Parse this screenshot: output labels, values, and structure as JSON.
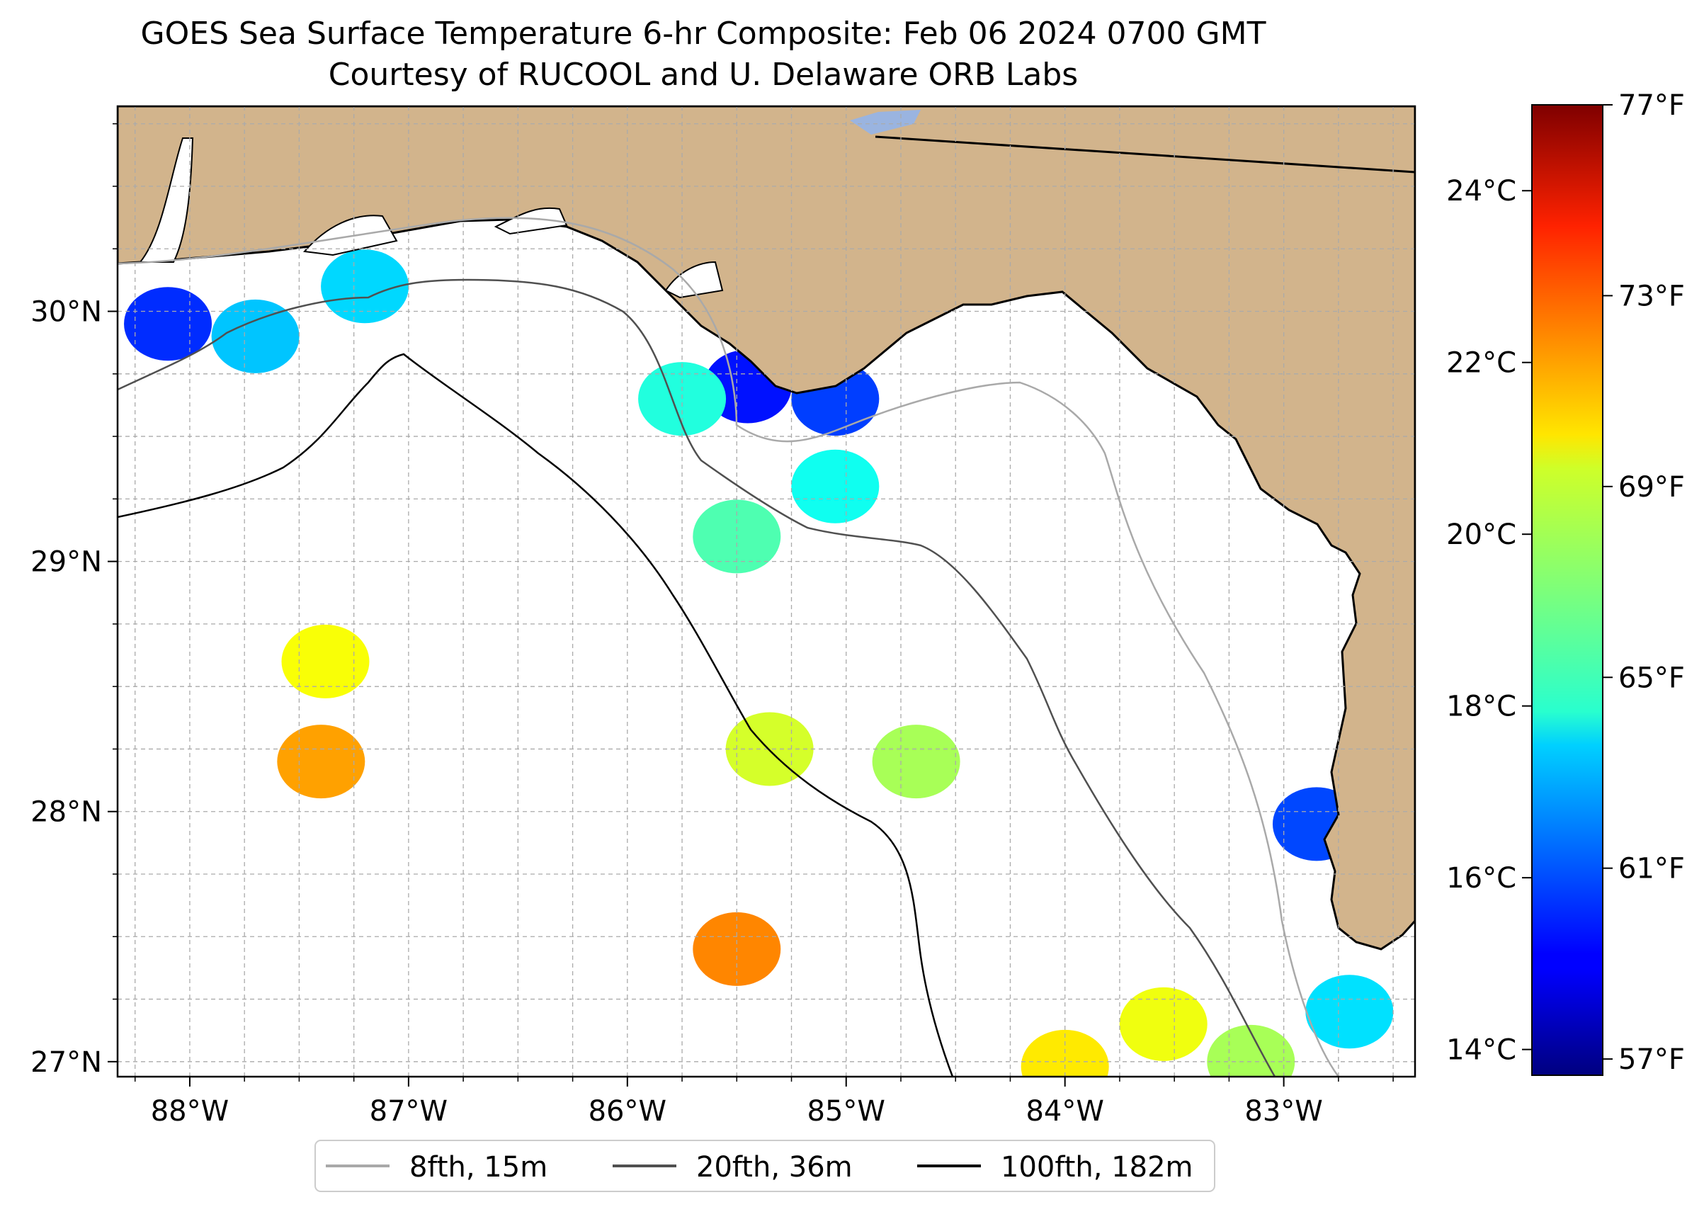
{
  "title": "GOES Sea Surface Temperature 6-hr Composite: Feb 06 2024 0700 GMT",
  "subtitle": "Courtesy of RUCOOL and U. Delaware ORB Labs",
  "map": {
    "lon_range": [
      -88.33,
      -82.4
    ],
    "lat_range": [
      26.94,
      30.82
    ],
    "lon_ticks": [
      {
        "value": -88,
        "label": "88°W"
      },
      {
        "value": -87,
        "label": "87°W"
      },
      {
        "value": -86,
        "label": "86°W"
      },
      {
        "value": -85,
        "label": "85°W"
      },
      {
        "value": -84,
        "label": "84°W"
      },
      {
        "value": -83,
        "label": "83°W"
      }
    ],
    "lat_ticks": [
      {
        "value": 30,
        "label": "30°N"
      },
      {
        "value": 29,
        "label": "29°N"
      },
      {
        "value": 28,
        "label": "28°N"
      },
      {
        "value": 27,
        "label": "27°N"
      }
    ],
    "land_color": "#d2b48c",
    "water_color": "#ffffff",
    "grid": true
  },
  "colorbar": {
    "celsius_range": [
      13.7,
      25.0
    ],
    "celsius_ticks": [
      {
        "value": 24,
        "label": "24°C"
      },
      {
        "value": 22,
        "label": "22°C"
      },
      {
        "value": 20,
        "label": "20°C"
      },
      {
        "value": 18,
        "label": "18°C"
      },
      {
        "value": 16,
        "label": "16°C"
      },
      {
        "value": 14,
        "label": "14°C"
      }
    ],
    "fahrenheit_ticks": [
      {
        "value": 77,
        "label": "77°F"
      },
      {
        "value": 73,
        "label": "73°F"
      },
      {
        "value": 69,
        "label": "69°F"
      },
      {
        "value": 65,
        "label": "65°F"
      },
      {
        "value": 61,
        "label": "61°F"
      },
      {
        "value": 57,
        "label": "57°F"
      }
    ],
    "colormap": "jet"
  },
  "legend": {
    "items": [
      {
        "label": "8fth, 15m",
        "color": "#a9a9a9"
      },
      {
        "label": "20fth, 36m",
        "color": "#505050"
      },
      {
        "label": "100fth, 182m",
        "color": "#000000"
      }
    ]
  },
  "chart_data": {
    "type": "heatmap",
    "title": "GOES Sea Surface Temperature 6-hr Composite: Feb 06 2024 0700 GMT",
    "subtitle": "Courtesy of RUCOOL and U. Delaware ORB Labs",
    "units": "°C",
    "sst_patches": [
      {
        "lon": -88.1,
        "lat": 29.95,
        "temp_c": 15.6
      },
      {
        "lon": -87.7,
        "lat": 29.9,
        "temp_c": 17.3
      },
      {
        "lon": -87.2,
        "lat": 30.1,
        "temp_c": 17.5
      },
      {
        "lon": -85.45,
        "lat": 29.7,
        "temp_c": 15.3
      },
      {
        "lon": -85.05,
        "lat": 29.65,
        "temp_c": 15.8
      },
      {
        "lon": -85.75,
        "lat": 29.65,
        "temp_c": 18.3
      },
      {
        "lon": -85.05,
        "lat": 29.3,
        "temp_c": 18.1
      },
      {
        "lon": -85.5,
        "lat": 29.1,
        "temp_c": 18.8
      },
      {
        "lon": -87.38,
        "lat": 28.6,
        "temp_c": 20.7
      },
      {
        "lon": -87.4,
        "lat": 28.2,
        "temp_c": 21.8
      },
      {
        "lon": -85.35,
        "lat": 28.25,
        "temp_c": 20.3
      },
      {
        "lon": -84.68,
        "lat": 28.2,
        "temp_c": 19.8
      },
      {
        "lon": -85.5,
        "lat": 27.45,
        "temp_c": 22.1
      },
      {
        "lon": -82.85,
        "lat": 27.95,
        "temp_c": 15.9
      },
      {
        "lon": -82.7,
        "lat": 27.2,
        "temp_c": 17.6
      },
      {
        "lon": -83.55,
        "lat": 27.15,
        "temp_c": 20.6
      },
      {
        "lon": -83.15,
        "lat": 27.0,
        "temp_c": 19.8
      },
      {
        "lon": -84.0,
        "lat": 26.98,
        "temp_c": 21.0
      }
    ]
  }
}
